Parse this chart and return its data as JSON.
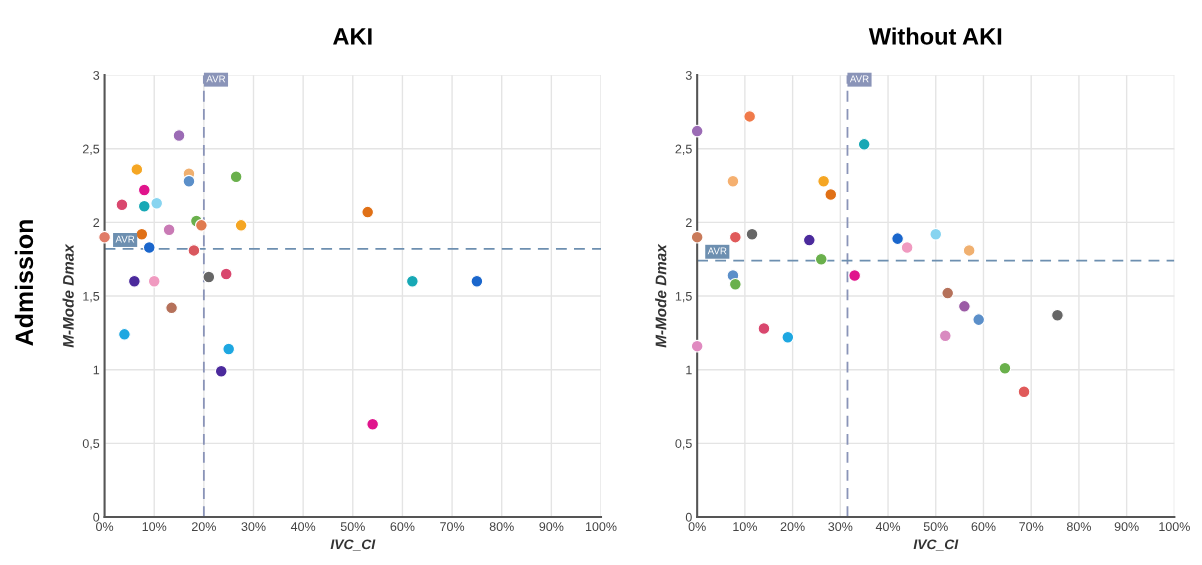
{
  "chart_data": [
    {
      "type": "scatter",
      "title": "AKI",
      "xlabel": "IVC_CI",
      "ylabel": "M-Mode Dmax",
      "annotations": [
        "Admission"
      ],
      "x": [
        0,
        3.5,
        6.5,
        8,
        8,
        10.5,
        7.5,
        9,
        6,
        10,
        4,
        13,
        15,
        17,
        17,
        18.5,
        19.5,
        18,
        13.5,
        21,
        24.5,
        26.5,
        27.5,
        25,
        23.5,
        53,
        62,
        75,
        54
      ],
      "values": [
        1.9,
        2.12,
        2.36,
        2.22,
        2.11,
        2.13,
        1.92,
        1.83,
        1.6,
        1.6,
        1.24,
        1.95,
        2.59,
        2.33,
        2.28,
        2.01,
        1.98,
        1.81,
        1.42,
        1.63,
        1.65,
        2.31,
        1.98,
        1.14,
        0.99,
        2.07,
        1.6,
        1.6,
        0.63
      ],
      "colors": [
        "#e07b67",
        "#d9476e",
        "#f5a623",
        "#e0148c",
        "#17a8b5",
        "#87d4f0",
        "#e07016",
        "#1a66cc",
        "#4b2a9c",
        "#f09ac0",
        "#1ea7e1",
        "#c97ab5",
        "#9b6bb5",
        "#f0b070",
        "#5b8fc9",
        "#6ab04c",
        "#e07b4f",
        "#d9575e",
        "#b5715a",
        "#666666",
        "#d9476e",
        "#6ab04c",
        "#f5a623",
        "#1ea7e1",
        "#4b2a9c",
        "#e07016",
        "#17a8b5",
        "#1a66cc",
        "#e0148c"
      ],
      "xlim": [
        0,
        100
      ],
      "ylim": [
        0,
        3
      ],
      "xticks": [
        {
          "value": 0,
          "label": "0%"
        },
        {
          "value": 10,
          "label": "10%"
        },
        {
          "value": 20,
          "label": "20%"
        },
        {
          "value": 30,
          "label": "30%"
        },
        {
          "value": 40,
          "label": "40%"
        },
        {
          "value": 50,
          "label": "50%"
        },
        {
          "value": 60,
          "label": "60%"
        },
        {
          "value": 70,
          "label": "70%"
        },
        {
          "value": 80,
          "label": "80%"
        },
        {
          "value": 90,
          "label": "90%"
        },
        {
          "value": 100,
          "label": "100%"
        }
      ],
      "yticks": [
        0,
        {
          "value": 0.5,
          "label": "0,5"
        },
        1,
        {
          "value": 1.5,
          "label": "1,5"
        },
        2,
        {
          "value": 2.5,
          "label": "2,5"
        },
        3
      ],
      "ref_lines": [
        {
          "axis": "x",
          "value": 20,
          "label": "AVR",
          "color": "#8a94b8",
          "line_style": "dashed"
        },
        {
          "axis": "y",
          "value": 1.82,
          "label": "AVR",
          "color": "#6d8fb0",
          "line_style": "dashed"
        }
      ],
      "grid": true,
      "marker": "circle"
    },
    {
      "type": "scatter",
      "title": "Without AKI",
      "xlabel": "IVC_CI",
      "ylabel": "M-Mode Dmax",
      "x": [
        0,
        0,
        0,
        11,
        7.5,
        8,
        11.5,
        7.5,
        8,
        14,
        19,
        23.5,
        26.5,
        28,
        26,
        33,
        35,
        42,
        44,
        50,
        57,
        52.5,
        56,
        59,
        52,
        64.5,
        68.5,
        75.5
      ],
      "values": [
        2.62,
        1.9,
        1.16,
        2.72,
        2.28,
        1.9,
        1.92,
        1.64,
        1.58,
        1.28,
        1.22,
        1.88,
        2.28,
        2.19,
        1.75,
        1.64,
        2.53,
        1.89,
        1.83,
        1.92,
        1.81,
        1.52,
        1.43,
        1.34,
        1.23,
        1.01,
        0.85,
        1.37
      ],
      "colors": [
        "#9b6bb5",
        "#c97a5a",
        "#e08ac0",
        "#f07a4a",
        "#f5b070",
        "#e05a5a",
        "#666666",
        "#5b8fc9",
        "#6ab04c",
        "#d9476e",
        "#1ea7e1",
        "#4b2a9c",
        "#f5a623",
        "#e07016",
        "#6ab04c",
        "#e0148c",
        "#17a8b5",
        "#1a66cc",
        "#f09ac0",
        "#87d4f0",
        "#f0b070",
        "#b5715a",
        "#9b5ba5",
        "#5b8fc9",
        "#d98ac0",
        "#6ab04c",
        "#e05a5a",
        "#666666"
      ],
      "xlim": [
        0,
        100
      ],
      "ylim": [
        0,
        3
      ],
      "xticks": [
        {
          "value": 0,
          "label": "0%"
        },
        {
          "value": 10,
          "label": "10%"
        },
        {
          "value": 20,
          "label": "20%"
        },
        {
          "value": 30,
          "label": "30%"
        },
        {
          "value": 40,
          "label": "40%"
        },
        {
          "value": 50,
          "label": "50%"
        },
        {
          "value": 60,
          "label": "60%"
        },
        {
          "value": 70,
          "label": "70%"
        },
        {
          "value": 80,
          "label": "80%"
        },
        {
          "value": 90,
          "label": "90%"
        },
        {
          "value": 100,
          "label": "100%"
        }
      ],
      "yticks": [
        0,
        {
          "value": 0.5,
          "label": "0,5"
        },
        1,
        {
          "value": 1.5,
          "label": "1,5"
        },
        2,
        {
          "value": 2.5,
          "label": "2,5"
        },
        3
      ],
      "ref_lines": [
        {
          "axis": "x",
          "value": 31.5,
          "label": "AVR",
          "color": "#8a94b8",
          "line_style": "dashed"
        },
        {
          "axis": "y",
          "value": 1.74,
          "label": "AVR",
          "color": "#6d8fb0",
          "line_style": "dashed"
        }
      ],
      "grid": true,
      "marker": "circle"
    }
  ]
}
